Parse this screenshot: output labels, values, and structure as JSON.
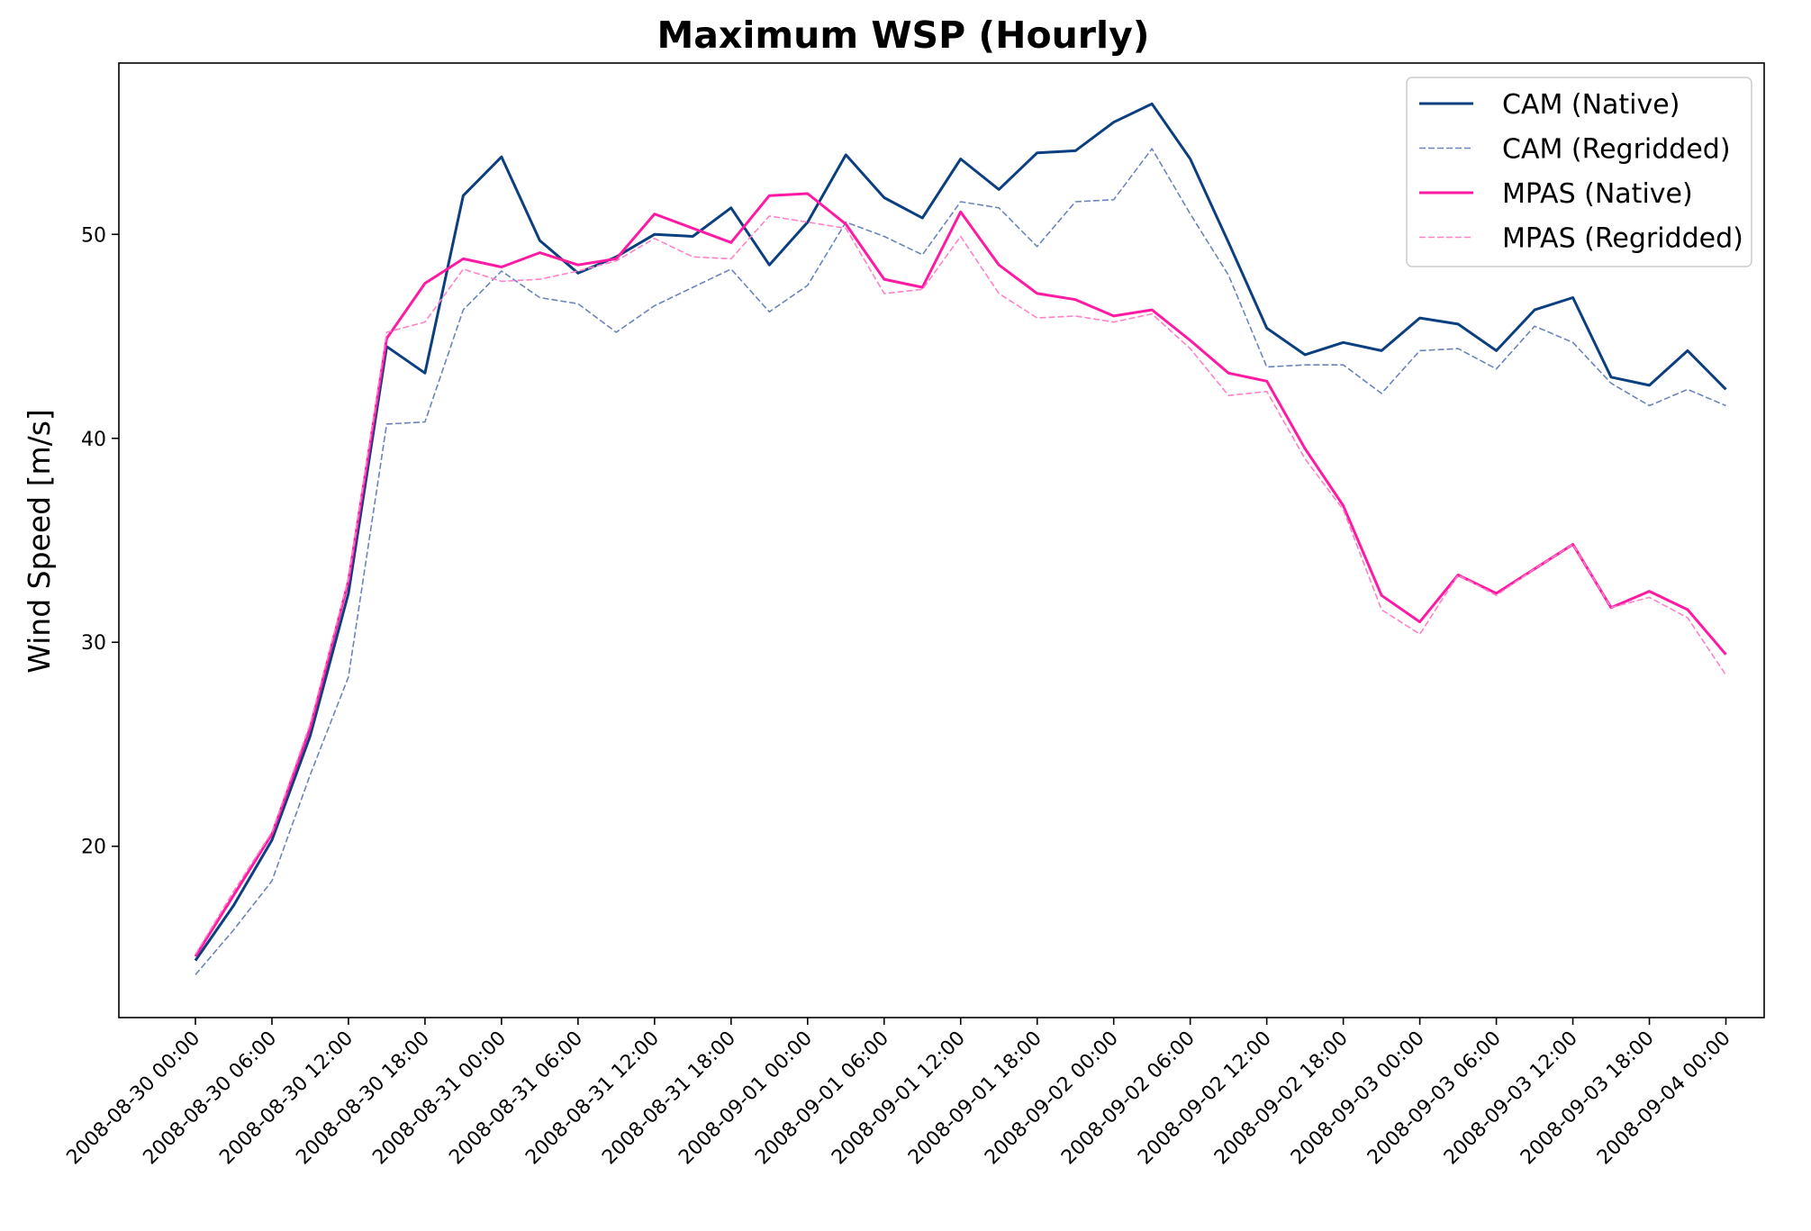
{
  "chart_data": {
    "type": "line",
    "title": "Maximum WSP (Hourly)",
    "xlabel": "",
    "ylabel": "Wind Speed [m/s]",
    "x_tick_labels": [
      "2008-08-30 00:00",
      "2008-08-30 06:00",
      "2008-08-30 12:00",
      "2008-08-30 18:00",
      "2008-08-31 00:00",
      "2008-08-31 06:00",
      "2008-08-31 12:00",
      "2008-08-31 18:00",
      "2008-09-01 00:00",
      "2008-09-01 06:00",
      "2008-09-01 12:00",
      "2008-09-01 18:00",
      "2008-09-02 00:00",
      "2008-09-02 06:00",
      "2008-09-02 12:00",
      "2008-09-02 18:00",
      "2008-09-03 00:00",
      "2008-09-03 06:00",
      "2008-09-03 12:00",
      "2008-09-03 18:00",
      "2008-09-04 00:00"
    ],
    "x": [
      "2008-08-30 00:00",
      "2008-08-30 03:00",
      "2008-08-30 06:00",
      "2008-08-30 09:00",
      "2008-08-30 12:00",
      "2008-08-30 15:00",
      "2008-08-30 18:00",
      "2008-08-30 21:00",
      "2008-08-31 00:00",
      "2008-08-31 03:00",
      "2008-08-31 06:00",
      "2008-08-31 09:00",
      "2008-08-31 12:00",
      "2008-08-31 15:00",
      "2008-08-31 18:00",
      "2008-08-31 21:00",
      "2008-09-01 00:00",
      "2008-09-01 03:00",
      "2008-09-01 06:00",
      "2008-09-01 09:00",
      "2008-09-01 12:00",
      "2008-09-01 15:00",
      "2008-09-01 18:00",
      "2008-09-01 21:00",
      "2008-09-02 00:00",
      "2008-09-02 03:00",
      "2008-09-02 06:00",
      "2008-09-02 09:00",
      "2008-09-02 12:00",
      "2008-09-02 15:00",
      "2008-09-02 18:00",
      "2008-09-02 21:00",
      "2008-09-03 00:00",
      "2008-09-03 03:00",
      "2008-09-03 06:00",
      "2008-09-03 09:00",
      "2008-09-03 12:00",
      "2008-09-03 15:00",
      "2008-09-03 18:00",
      "2008-09-03 21:00",
      "2008-09-04 00:00"
    ],
    "y_ticks": [
      20,
      30,
      40,
      50
    ],
    "ylim": [
      11.6,
      58.4
    ],
    "xlim": [
      "2008-08-29 18:00",
      "2008-09-04 03:00"
    ],
    "grid": false,
    "legend_position": "top-right",
    "series": [
      {
        "name": "CAM (Native)",
        "color": "#0b3f7f",
        "style": "solid",
        "values": [
          14.4,
          17.1,
          20.3,
          25.4,
          32.4,
          44.5,
          43.2,
          51.9,
          53.8,
          49.7,
          48.1,
          48.9,
          50.0,
          49.9,
          51.3,
          48.5,
          50.6,
          53.9,
          51.8,
          50.8,
          53.7,
          52.2,
          54.0,
          54.1,
          55.5,
          56.4,
          53.7,
          49.6,
          45.4,
          44.1,
          44.7,
          44.3,
          45.9,
          45.6,
          44.3,
          46.3,
          46.9,
          43.0,
          42.6,
          44.3,
          42.4
        ]
      },
      {
        "name": "CAM (Regridded)",
        "color": "#6b85bb",
        "style": "dashed",
        "values": [
          13.7,
          15.9,
          18.3,
          23.5,
          28.3,
          40.7,
          40.8,
          46.3,
          48.2,
          46.9,
          46.6,
          45.2,
          46.5,
          47.4,
          48.3,
          46.2,
          47.5,
          50.6,
          49.9,
          49.0,
          51.6,
          51.3,
          49.4,
          51.6,
          51.7,
          54.2,
          51.0,
          48.0,
          43.5,
          43.6,
          43.6,
          42.2,
          44.3,
          44.4,
          43.4,
          45.5,
          44.7,
          42.7,
          41.6,
          42.4,
          41.6
        ]
      },
      {
        "name": "MPAS (Native)",
        "color": "#ff1aa3",
        "style": "solid",
        "values": [
          14.6,
          17.6,
          20.6,
          25.8,
          33.0,
          44.9,
          47.6,
          48.8,
          48.4,
          49.1,
          48.5,
          48.8,
          51.0,
          50.3,
          49.6,
          51.9,
          52.0,
          50.5,
          47.8,
          47.4,
          51.1,
          48.5,
          47.1,
          46.8,
          46.0,
          46.3,
          44.8,
          43.2,
          42.8,
          39.5,
          36.7,
          32.3,
          31.0,
          33.3,
          32.4,
          33.6,
          34.8,
          31.7,
          32.5,
          31.6,
          29.4
        ]
      },
      {
        "name": "MPAS (Regridded)",
        "color": "#ff82c8",
        "style": "dashed",
        "values": [
          14.7,
          17.8,
          20.7,
          26.0,
          33.1,
          45.2,
          45.7,
          48.3,
          47.7,
          47.8,
          48.2,
          48.7,
          49.8,
          48.9,
          48.8,
          50.9,
          50.6,
          50.3,
          47.1,
          47.3,
          49.9,
          47.1,
          45.9,
          46.0,
          45.7,
          46.1,
          44.4,
          42.1,
          42.3,
          39.0,
          36.5,
          31.6,
          30.4,
          33.3,
          32.3,
          33.6,
          34.8,
          31.7,
          32.2,
          31.2,
          28.4
        ]
      }
    ]
  }
}
